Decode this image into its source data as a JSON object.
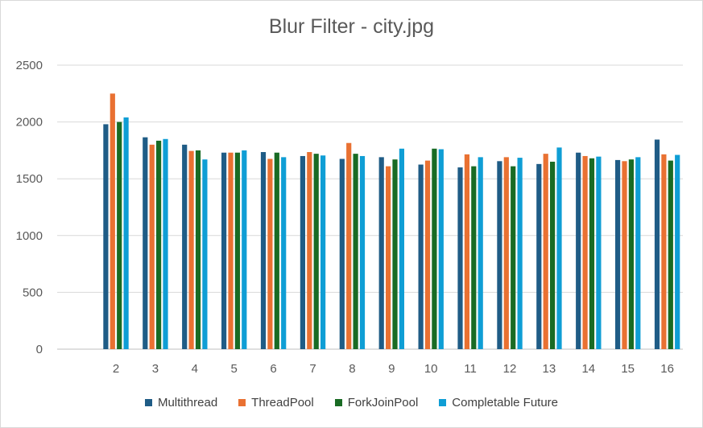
{
  "chart_data": {
    "type": "bar",
    "title": "Blur Filter - city.jpg",
    "xlabel": "",
    "ylabel": "",
    "ylim": [
      0,
      2500
    ],
    "yticks": [
      0,
      500,
      1000,
      1500,
      2000,
      2500
    ],
    "categories": [
      "2",
      "3",
      "4",
      "5",
      "6",
      "7",
      "8",
      "9",
      "10",
      "11",
      "12",
      "13",
      "14",
      "15",
      "16"
    ],
    "series": [
      {
        "name": "Multithread",
        "color": "#1f5c86",
        "values": [
          1980,
          1865,
          1800,
          1730,
          1735,
          1700,
          1675,
          1690,
          1625,
          1600,
          1655,
          1630,
          1730,
          1665,
          1845
        ]
      },
      {
        "name": "ThreadPool",
        "color": "#e97132",
        "values": [
          2250,
          1800,
          1745,
          1730,
          1675,
          1735,
          1815,
          1610,
          1660,
          1715,
          1690,
          1720,
          1700,
          1655,
          1715
        ]
      },
      {
        "name": "ForkJoinPool",
        "color": "#196b24",
        "values": [
          2000,
          1835,
          1750,
          1730,
          1730,
          1720,
          1720,
          1670,
          1765,
          1610,
          1610,
          1650,
          1680,
          1670,
          1660
        ]
      },
      {
        "name": "Completable Future",
        "color": "#0f9ed5",
        "values": [
          2040,
          1850,
          1670,
          1750,
          1690,
          1705,
          1700,
          1765,
          1760,
          1690,
          1685,
          1775,
          1695,
          1690,
          1710
        ]
      }
    ],
    "grid": true,
    "legend_position": "bottom"
  }
}
